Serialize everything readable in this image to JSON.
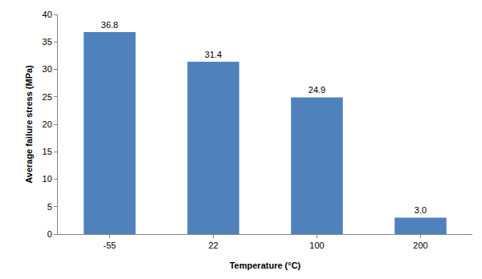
{
  "chart_data": {
    "type": "bar",
    "x_label": "Temperature (°C)",
    "y_label": "Average failure stress (MPa)",
    "categories": [
      "-55",
      "22",
      "100",
      "200"
    ],
    "values": [
      36.8,
      31.4,
      24.9,
      3.0
    ],
    "value_labels": [
      "36.8",
      "31.4",
      "24.9",
      "3.0"
    ],
    "color": "#4f81bd",
    "ylim": [
      0,
      40
    ],
    "yticks": [
      0,
      5,
      10,
      15,
      20,
      25,
      30,
      35,
      40
    ],
    "grid": false,
    "data_labels": true
  }
}
